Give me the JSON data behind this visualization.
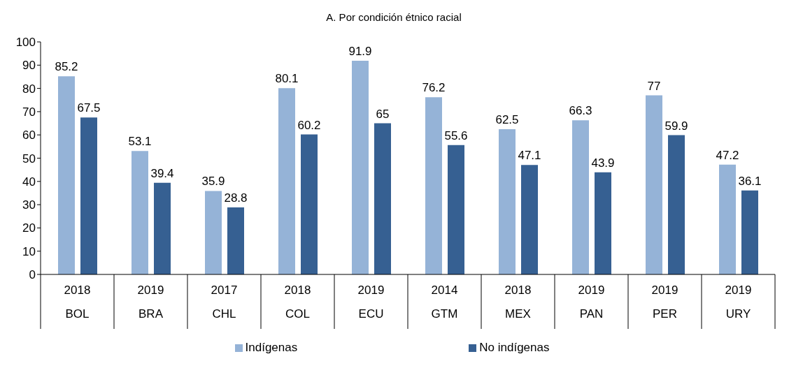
{
  "chart_data": {
    "type": "bar",
    "title": "A. Por condición étnico racial",
    "categories": [
      "2018\nBOL",
      "2019\nBRA",
      "2017\nCHL",
      "2018\nCOL",
      "2019\nECU",
      "2014\nGTM",
      "2018\nMEX",
      "2019\nPAN",
      "2019\nPER",
      "2019\nURY"
    ],
    "series": [
      {
        "name": "Indígenas",
        "color": "#95b3d7",
        "values": [
          85.2,
          53.1,
          35.9,
          80.1,
          91.9,
          76.2,
          62.5,
          66.3,
          77,
          47.2
        ]
      },
      {
        "name": "No indígenas",
        "color": "#366092",
        "values": [
          67.5,
          39.4,
          28.8,
          60.2,
          65,
          55.6,
          47.1,
          43.9,
          59.9,
          36.1
        ]
      }
    ],
    "ylim": [
      0,
      100
    ],
    "yticks": [
      0,
      10,
      20,
      30,
      40,
      50,
      60,
      70,
      80,
      90,
      100
    ],
    "grid": false,
    "legend": "bottom",
    "data_labels": true
  }
}
